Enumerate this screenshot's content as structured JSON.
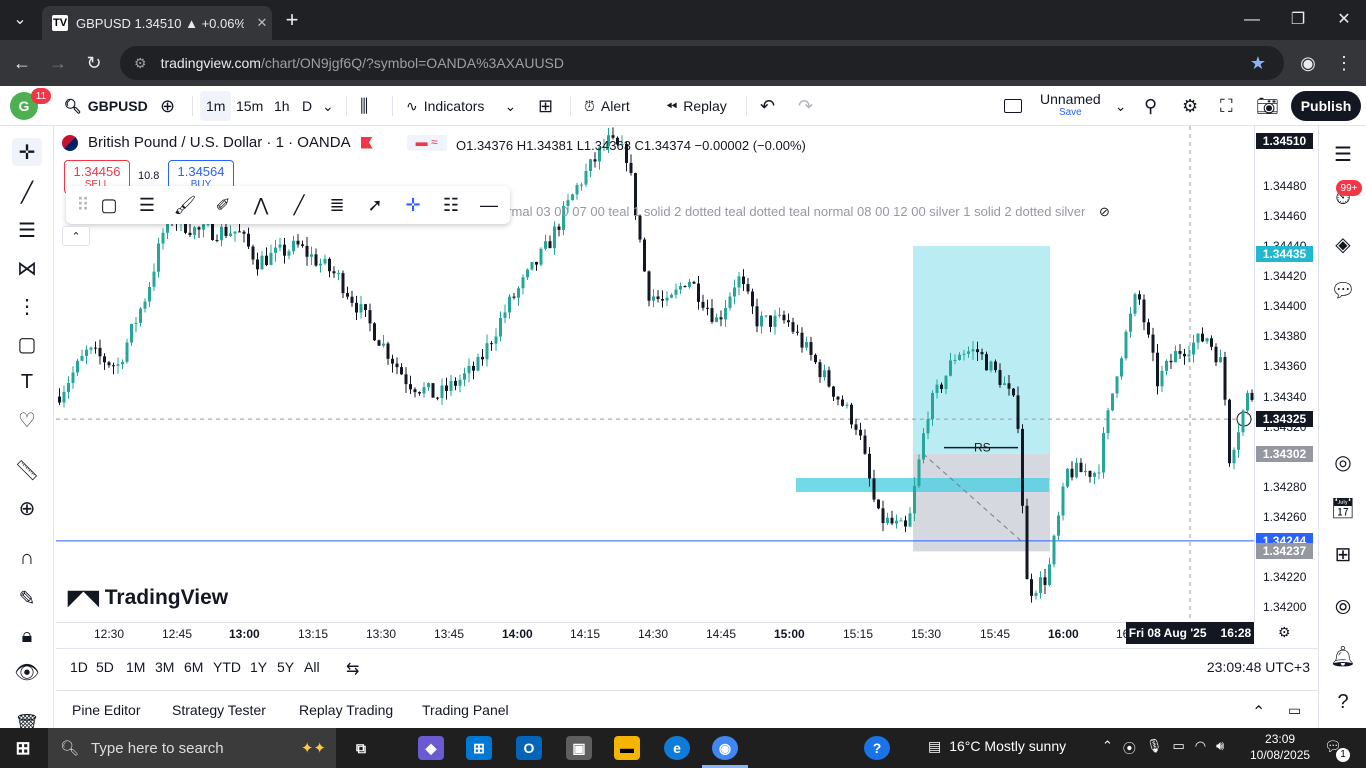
{
  "browser": {
    "tab_title": "GBPUSD 1.34510 ▲ +0.06% Un",
    "tab_favicon": "TV",
    "url_host": "tradingview.com",
    "url_path": "/chart/ON9jgf6Q/?symbol=OANDA%3AXAUUSD"
  },
  "toolbar": {
    "avatar_letter": "G",
    "avatar_badge": "11",
    "symbol": "GBPUSD",
    "intervals": [
      "1m",
      "15m",
      "1h",
      "D"
    ],
    "indicators_label": "Indicators",
    "alert_label": "Alert",
    "replay_label": "Replay",
    "layout_name": "Unnamed",
    "save_label": "Save",
    "publish_label": "Publish"
  },
  "legend": {
    "title": "British Pound / U.S. Dollar · 1 · OANDA",
    "ohlc": "O1.34376 H1.34381 L1.34363 C1.34374 −0.00002 (−0.00%)",
    "sell_price": "1.34456",
    "sell_label": "SELL",
    "spread": "10.8",
    "buy_price": "1.34564",
    "buy_label": "BUY",
    "indicator_text": "ormal 03 00 07 00 teal 1 solid 2 dotted teal dotted teal normal 08 00 12 00 silver 1 solid 2 dotted silver"
  },
  "right_badge": "99+",
  "chart_data": {
    "type": "candlestick",
    "price_levels": [
      "1.34480",
      "1.34460",
      "1.34440",
      "1.34420",
      "1.34400",
      "1.34380",
      "1.34360",
      "1.34340",
      "1.34320",
      "1.34280",
      "1.34260",
      "1.34220",
      "1.34200"
    ],
    "price_tags": [
      {
        "value": "1.34510",
        "color": "#131722"
      },
      {
        "value": "1.34435",
        "color": "#22b8cf"
      },
      {
        "value": "1.34325",
        "color": "#131722"
      },
      {
        "value": "1.34302",
        "color": "#9598a1"
      },
      {
        "value": "1.34244",
        "color": "#2962ff"
      },
      {
        "value": "1.34237",
        "color": "#9598a1"
      }
    ],
    "time_labels": [
      "12:30",
      "12:45",
      "13:00",
      "13:15",
      "13:30",
      "13:45",
      "14:00",
      "14:15",
      "14:30",
      "14:45",
      "15:00",
      "15:15",
      "15:30",
      "15:45",
      "16:00",
      "16"
    ],
    "crosshair_time": "Fri 08 Aug '25",
    "crosshair_hhmm": "16:28",
    "rs_label": "RS",
    "ylim": [
      1.3419,
      1.3452
    ]
  },
  "watermark": "TradingView",
  "ranges": [
    "1D",
    "5D",
    "1M",
    "3M",
    "6M",
    "YTD",
    "1Y",
    "5Y",
    "All"
  ],
  "clock": "23:09:48 UTC+3",
  "bottom_tabs": [
    "Pine Editor",
    "Strategy Tester",
    "Replay Trading",
    "Trading Panel"
  ],
  "taskbar": {
    "search_placeholder": "Type here to search",
    "weather": "16°C  Mostly sunny",
    "time": "23:09",
    "date": "10/08/2025",
    "notif_count": "1"
  }
}
